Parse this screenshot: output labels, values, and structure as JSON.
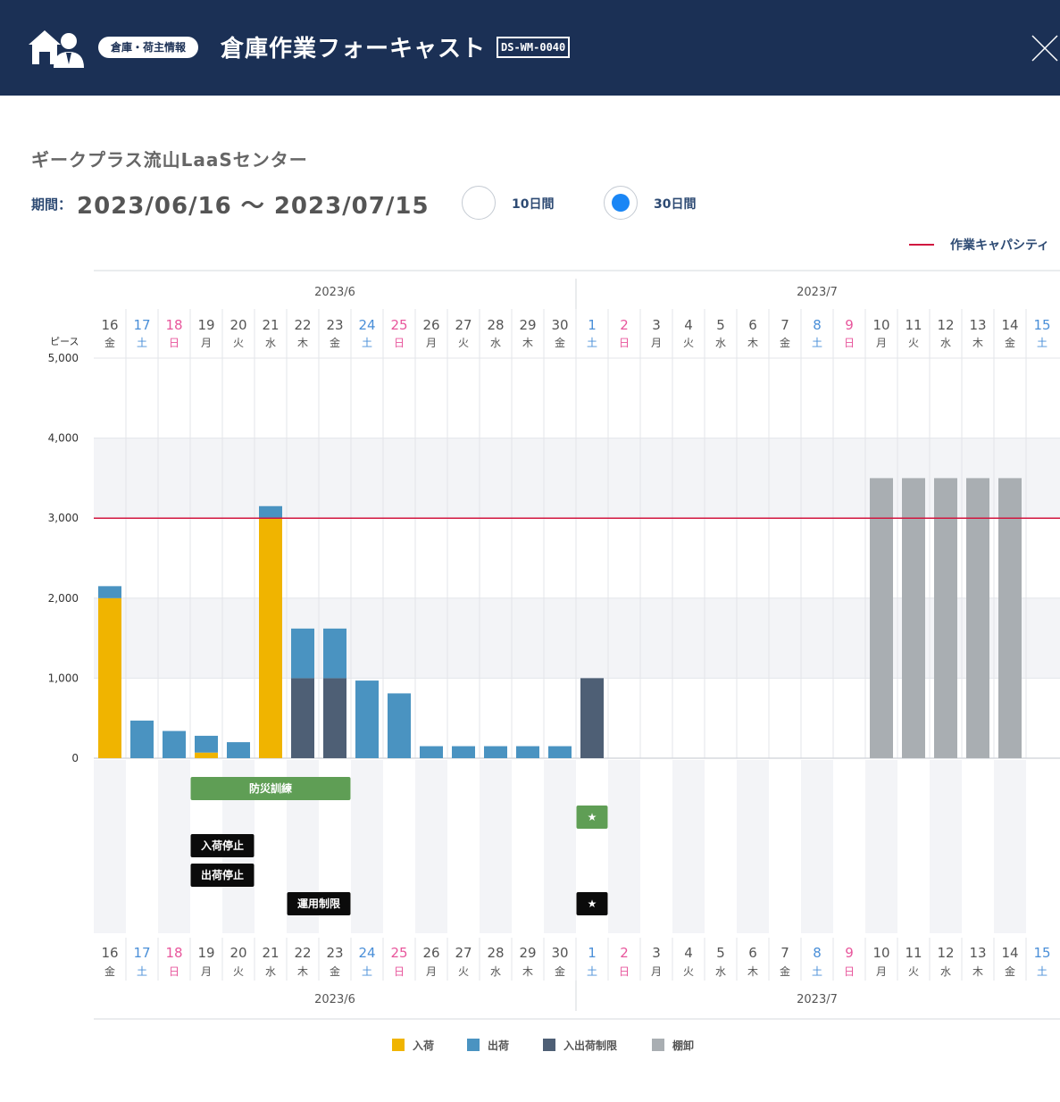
{
  "header": {
    "category": "倉庫・荷主情報",
    "title": "倉庫作業フォーキャスト",
    "code": "DS-WM-0040",
    "logo_icon": "warehouse-person-icon",
    "close_icon": "close-icon"
  },
  "center_name": "ギークプラス流山LaaSセンター",
  "period": {
    "label": "期間：",
    "value": "2023/06/16 ～ 2023/07/15"
  },
  "range_options": [
    {
      "label": "10日間",
      "selected": false
    },
    {
      "label": "30日間",
      "selected": true
    }
  ],
  "capacity_legend": "作業キャパシティ",
  "colors": {
    "inbound": "#f0b400",
    "outbound": "#4a93c1",
    "restriction": "#4e5f75",
    "inventory": "#a9aeb2",
    "capacity": "#d1163f",
    "saturday": "#4a8fd8",
    "sunday": "#e8569c",
    "event_green": "#5f9e55",
    "event_black": "#0b0b0b"
  },
  "chart_data": {
    "type": "bar",
    "stacked": true,
    "ylabel": "ピース",
    "ylim": [
      0,
      5000
    ],
    "yticks": [
      0,
      1000,
      2000,
      3000,
      4000,
      5000
    ],
    "ytick_labels": [
      "0",
      "1,000",
      "2,000",
      "3,000",
      "4,000",
      "5,000"
    ],
    "capacity": 3000,
    "months": [
      {
        "label": "2023/6",
        "start": 0,
        "end": 14
      },
      {
        "label": "2023/7",
        "start": 15,
        "end": 29
      }
    ],
    "days": [
      {
        "day": "16",
        "wd": "金",
        "type": "weekday"
      },
      {
        "day": "17",
        "wd": "土",
        "type": "sat"
      },
      {
        "day": "18",
        "wd": "日",
        "type": "sun"
      },
      {
        "day": "19",
        "wd": "月",
        "type": "weekday"
      },
      {
        "day": "20",
        "wd": "火",
        "type": "weekday"
      },
      {
        "day": "21",
        "wd": "水",
        "type": "weekday"
      },
      {
        "day": "22",
        "wd": "木",
        "type": "weekday"
      },
      {
        "day": "23",
        "wd": "金",
        "type": "weekday"
      },
      {
        "day": "24",
        "wd": "土",
        "type": "sat"
      },
      {
        "day": "25",
        "wd": "日",
        "type": "sun"
      },
      {
        "day": "26",
        "wd": "月",
        "type": "weekday"
      },
      {
        "day": "27",
        "wd": "火",
        "type": "weekday"
      },
      {
        "day": "28",
        "wd": "水",
        "type": "weekday"
      },
      {
        "day": "29",
        "wd": "木",
        "type": "weekday"
      },
      {
        "day": "30",
        "wd": "金",
        "type": "weekday"
      },
      {
        "day": "1",
        "wd": "土",
        "type": "sat"
      },
      {
        "day": "2",
        "wd": "日",
        "type": "sun"
      },
      {
        "day": "3",
        "wd": "月",
        "type": "weekday"
      },
      {
        "day": "4",
        "wd": "火",
        "type": "weekday"
      },
      {
        "day": "5",
        "wd": "水",
        "type": "weekday"
      },
      {
        "day": "6",
        "wd": "木",
        "type": "weekday"
      },
      {
        "day": "7",
        "wd": "金",
        "type": "weekday"
      },
      {
        "day": "8",
        "wd": "土",
        "type": "sat"
      },
      {
        "day": "9",
        "wd": "日",
        "type": "sun"
      },
      {
        "day": "10",
        "wd": "月",
        "type": "weekday"
      },
      {
        "day": "11",
        "wd": "火",
        "type": "weekday"
      },
      {
        "day": "12",
        "wd": "水",
        "type": "weekday"
      },
      {
        "day": "13",
        "wd": "木",
        "type": "weekday"
      },
      {
        "day": "14",
        "wd": "金",
        "type": "weekday"
      },
      {
        "day": "15",
        "wd": "土",
        "type": "sat"
      }
    ],
    "series": [
      {
        "name": "入荷",
        "key": "inbound",
        "values": [
          2000,
          0,
          0,
          70,
          0,
          3000,
          0,
          0,
          0,
          0,
          0,
          0,
          0,
          0,
          0,
          0,
          0,
          0,
          0,
          0,
          0,
          0,
          0,
          0,
          0,
          0,
          0,
          0,
          0,
          0
        ]
      },
      {
        "name": "出荷",
        "key": "outbound",
        "values": [
          150,
          470,
          340,
          210,
          200,
          150,
          620,
          620,
          970,
          810,
          150,
          150,
          150,
          150,
          150,
          0,
          0,
          0,
          0,
          0,
          0,
          0,
          0,
          0,
          0,
          0,
          0,
          0,
          0,
          0
        ]
      },
      {
        "name": "入出荷制限",
        "key": "restriction",
        "values": [
          0,
          0,
          0,
          0,
          0,
          0,
          1000,
          1000,
          0,
          0,
          0,
          0,
          0,
          0,
          0,
          1000,
          0,
          0,
          0,
          0,
          0,
          0,
          0,
          0,
          0,
          0,
          0,
          0,
          0,
          0
        ]
      },
      {
        "name": "棚卸",
        "key": "inventory",
        "values": [
          0,
          0,
          0,
          0,
          0,
          0,
          0,
          0,
          0,
          0,
          0,
          0,
          0,
          0,
          0,
          0,
          0,
          0,
          0,
          0,
          0,
          0,
          0,
          0,
          3500,
          3500,
          3500,
          3500,
          3500,
          0
        ]
      }
    ],
    "events": [
      {
        "label": "防災訓練",
        "start": 3,
        "end": 7,
        "row": 0,
        "color": "event_green"
      },
      {
        "label": "★",
        "start": 15,
        "end": 15,
        "row": 1,
        "color": "event_green"
      },
      {
        "label": "入荷停止",
        "start": 3,
        "end": 4,
        "row": 2,
        "color": "event_black"
      },
      {
        "label": "出荷停止",
        "start": 3,
        "end": 4,
        "row": 3,
        "color": "event_black"
      },
      {
        "label": "運用制限",
        "start": 6,
        "end": 7,
        "row": 4,
        "color": "event_black"
      },
      {
        "label": "★",
        "start": 15,
        "end": 15,
        "row": 4,
        "color": "event_black"
      }
    ]
  }
}
